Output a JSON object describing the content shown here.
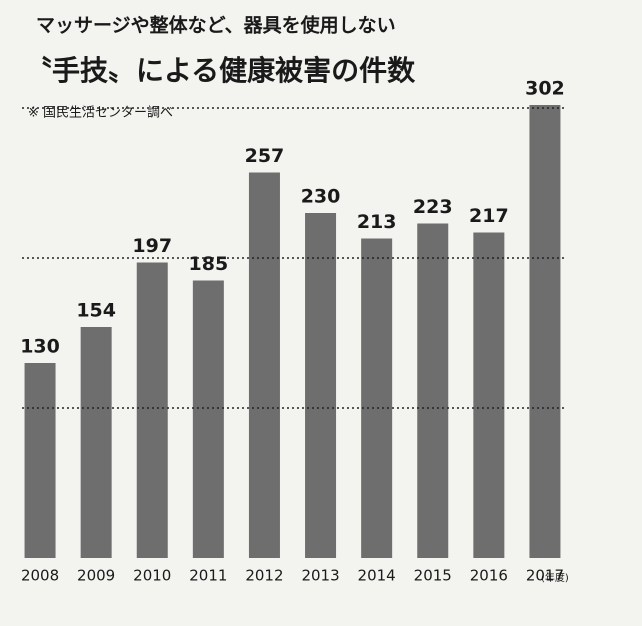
{
  "chart_data": {
    "type": "bar",
    "title": "マッサージや整体など、器具を使用しない",
    "subtitle": "〝手技〟による健康被害の件数",
    "note": "※ 国民生活センター調べ",
    "x_unit": "(年度)",
    "categories": [
      "2008",
      "2009",
      "2010",
      "2011",
      "2012",
      "2013",
      "2014",
      "2015",
      "2016",
      "2017"
    ],
    "values": [
      130,
      154,
      197,
      185,
      257,
      230,
      213,
      223,
      217,
      302
    ],
    "color": "#6e6e6e",
    "ylim": [
      0,
      310
    ],
    "yticks": [
      100,
      200,
      300
    ],
    "grid": true
  }
}
